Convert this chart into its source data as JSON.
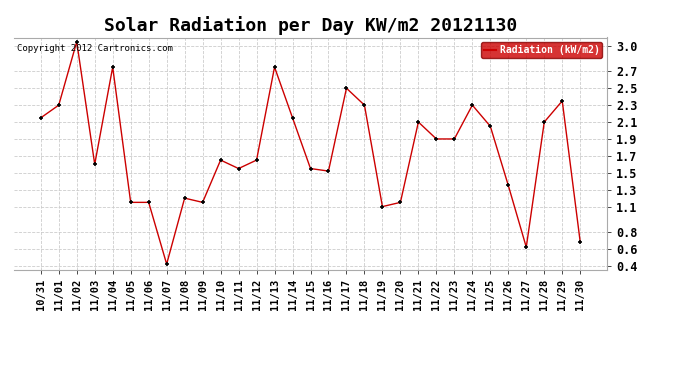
{
  "title": "Solar Radiation per Day KW/m2 20121130",
  "copyright": "Copyright 2012 Cartronics.com",
  "legend_label": "Radiation (kW/m2)",
  "x_labels": [
    "10/31",
    "11/01",
    "11/02",
    "11/03",
    "11/04",
    "11/05",
    "11/06",
    "11/07",
    "11/08",
    "11/09",
    "11/10",
    "11/11",
    "11/12",
    "11/13",
    "11/14",
    "11/15",
    "11/16",
    "11/17",
    "11/18",
    "11/19",
    "11/20",
    "11/21",
    "11/22",
    "11/23",
    "11/24",
    "11/25",
    "11/26",
    "11/27",
    "11/28",
    "11/29",
    "11/30"
  ],
  "y_values": [
    2.15,
    2.3,
    3.05,
    1.6,
    2.75,
    1.15,
    1.15,
    0.42,
    1.2,
    1.15,
    1.65,
    1.55,
    1.65,
    2.75,
    2.15,
    1.55,
    1.52,
    2.5,
    2.3,
    1.1,
    1.15,
    2.1,
    1.9,
    1.9,
    2.3,
    2.05,
    1.35,
    0.62,
    2.1,
    2.35,
    0.68
  ],
  "line_color": "#cc0000",
  "marker_color": "#000000",
  "bg_color": "#ffffff",
  "plot_bg_color": "#ffffff",
  "grid_color": "#cccccc",
  "title_fontsize": 13,
  "tick_fontsize": 7.5,
  "ylim": [
    0.35,
    3.1
  ],
  "yticks": [
    3.0,
    2.7,
    2.5,
    2.3,
    2.1,
    1.9,
    1.7,
    1.5,
    1.3,
    1.1,
    0.8,
    0.6,
    0.4
  ],
  "legend_bg": "#cc0000",
  "legend_text_color": "#ffffff"
}
